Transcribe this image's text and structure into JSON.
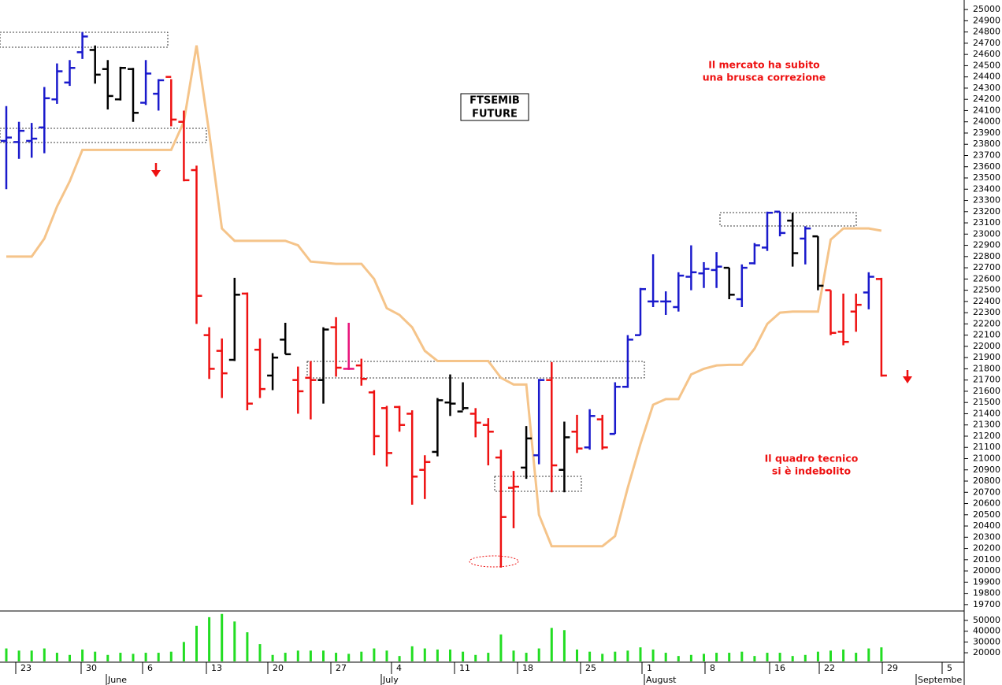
{
  "chart_data": {
    "type": "ohlc",
    "title_lines": [
      "FTSEMIB",
      "FUTURE"
    ],
    "annotations": [
      {
        "lines": [
          "Il mercato ha subito",
          "una brusca correzione"
        ],
        "color": "#ee1111"
      },
      {
        "lines": [
          "Il quadro tecnico",
          "si è indebolito"
        ],
        "color": "#ee1111"
      }
    ],
    "x_labels": [
      "23",
      "30",
      "6",
      "13",
      "20",
      "27",
      "4",
      "11",
      "18",
      "25",
      "1",
      "8",
      "16",
      "22",
      "29",
      "5"
    ],
    "month_labels": [
      "June",
      "July",
      "August",
      "Septembe"
    ],
    "ylim": [
      19650,
      25085
    ],
    "yticks": [
      19700,
      19800,
      19900,
      20000,
      20100,
      20200,
      20300,
      20400,
      20500,
      20600,
      20700,
      20800,
      20900,
      21000,
      21100,
      21200,
      21300,
      21400,
      21500,
      21600,
      21700,
      21800,
      21900,
      22000,
      22100,
      22200,
      22300,
      22400,
      22500,
      22600,
      22700,
      22800,
      22900,
      23000,
      23100,
      23200,
      23300,
      23400,
      23500,
      23600,
      23700,
      23800,
      23900,
      24000,
      24100,
      24200,
      24300,
      24400,
      24500,
      24600,
      24700,
      24800,
      24900,
      25000
    ],
    "high": [
      24140,
      24000,
      23990,
      24310,
      24520,
      24550,
      24800,
      24680,
      24550,
      24490,
      24480,
      24550,
      24380,
      24380,
      24100,
      23610,
      22170,
      22070,
      22610,
      22480,
      22070,
      21940,
      22210,
      21820,
      21870,
      22170,
      22260,
      22210,
      21890,
      21610,
      21470,
      21470,
      21430,
      21030,
      21540,
      21750,
      21680,
      21450,
      21360,
      21080,
      20890,
      21290,
      21710,
      21860,
      21330,
      21390,
      21440,
      21390,
      21680,
      22100,
      22520,
      22820,
      22490,
      22660,
      22900,
      22750,
      22840,
      22700,
      22730,
      22920,
      23200,
      23200,
      23190,
      23070,
      22980,
      22500,
      22470,
      22470,
      22660,
      22610
    ],
    "low": [
      23400,
      23670,
      23680,
      23720,
      24160,
      24320,
      24560,
      24340,
      24110,
      24190,
      24000,
      24150,
      24100,
      23960,
      23470,
      22200,
      21710,
      21540,
      21870,
      21430,
      21540,
      21610,
      21930,
      21400,
      21350,
      21490,
      21730,
      21790,
      21650,
      21030,
      20930,
      21240,
      20590,
      20640,
      21020,
      21380,
      21430,
      21190,
      20940,
      20030,
      20380,
      20820,
      20950,
      20700,
      20700,
      21050,
      21080,
      21080,
      21220,
      21630,
      22100,
      22350,
      22280,
      22310,
      22500,
      22520,
      22520,
      22420,
      22350,
      22730,
      22850,
      22980,
      22710,
      22730,
      22500,
      22100,
      22010,
      22130,
      22330,
      21730
    ],
    "open": [
      23830,
      23820,
      23830,
      23950,
      24200,
      24350,
      24620,
      24640,
      24470,
      24200,
      24470,
      24170,
      24250,
      24400,
      24000,
      23570,
      22100,
      21960,
      21880,
      22470,
      21970,
      21740,
      22060,
      21700,
      21720,
      21700,
      22170,
      21800,
      21830,
      21590,
      21450,
      21460,
      21400,
      20900,
      21060,
      21500,
      21420,
      21400,
      21300,
      21010,
      20740,
      20920,
      21030,
      21700,
      20900,
      21240,
      21100,
      21350,
      21220,
      21640,
      22100,
      22400,
      22400,
      22350,
      22620,
      22650,
      22680,
      22700,
      22420,
      22740,
      22880,
      23200,
      23120,
      22960,
      22980,
      22500,
      22130,
      22310,
      22480,
      22600
    ],
    "close": [
      23860,
      23920,
      23850,
      24210,
      24450,
      24480,
      24760,
      24420,
      24230,
      24480,
      24080,
      24430,
      24370,
      24020,
      23480,
      22450,
      21800,
      21760,
      22460,
      21490,
      21620,
      21900,
      21930,
      21600,
      21700,
      22150,
      21810,
      21800,
      21710,
      21200,
      21050,
      21300,
      20840,
      20970,
      21520,
      21490,
      21450,
      21320,
      21240,
      20480,
      20750,
      21180,
      21700,
      20940,
      21190,
      21090,
      21380,
      21100,
      21640,
      22060,
      22510,
      22400,
      22400,
      22630,
      22660,
      22690,
      22710,
      22460,
      22700,
      22900,
      23190,
      23010,
      22830,
      23050,
      22540,
      22120,
      22040,
      22370,
      22620,
      21740
    ],
    "colors": [
      "#1a1acc",
      "#1a1acc",
      "#1a1acc",
      "#1a1acc",
      "#1a1acc",
      "#1a1acc",
      "#1a1acc",
      "#000000",
      "#000000",
      "#000000",
      "#000000",
      "#1a1acc",
      "#1a1acc",
      "#ee1111",
      "#ee1111",
      "#ee1111",
      "#ee1111",
      "#ee1111",
      "#000000",
      "#ee1111",
      "#ee1111",
      "#000000",
      "#000000",
      "#ee1111",
      "#ee1111",
      "#000000",
      "#ee1111",
      "#e8117a",
      "#ee1111",
      "#ee1111",
      "#ee1111",
      "#ee1111",
      "#ee1111",
      "#ee1111",
      "#000000",
      "#000000",
      "#000000",
      "#ee1111",
      "#ee1111",
      "#ee1111",
      "#ee1111",
      "#000000",
      "#1a1acc",
      "#ee1111",
      "#000000",
      "#ee1111",
      "#1a1acc",
      "#ee1111",
      "#1a1acc",
      "#1a1acc",
      "#1a1acc",
      "#1a1acc",
      "#1a1acc",
      "#1a1acc",
      "#1a1acc",
      "#1a1acc",
      "#1a1acc",
      "#000000",
      "#1a1acc",
      "#1a1acc",
      "#1a1acc",
      "#1a1acc",
      "#000000",
      "#1a1acc",
      "#000000",
      "#ee1111",
      "#ee1111",
      "#ee1111",
      "#1a1acc",
      "#ee1111"
    ],
    "stop_line": {
      "color": "#f5c48a",
      "values": [
        22800,
        22800,
        22800,
        22960,
        23245,
        23470,
        23750,
        23750,
        23750,
        23750,
        23750,
        23750,
        23750,
        23750,
        24000,
        24680,
        23900,
        23050,
        22940,
        22940,
        22940,
        22940,
        22940,
        22900,
        22755,
        22745,
        22735,
        22735,
        22735,
        22600,
        22340,
        22280,
        22170,
        21960,
        21870,
        21870,
        21870,
        21870,
        21870,
        21720,
        21660,
        21660,
        20500,
        20220,
        20220,
        20220,
        20220,
        20220,
        20310,
        20740,
        21130,
        21480,
        21530,
        21530,
        21750,
        21800,
        21830,
        21835,
        21835,
        21980,
        22200,
        22300,
        22310,
        22310,
        22310,
        22950,
        23050,
        23050,
        23050,
        23030
      ]
    },
    "volume": {
      "color": "#22dd22",
      "ylim": [
        12000,
        58000
      ],
      "yticks": [
        20000,
        30000,
        40000,
        50000
      ],
      "values": [
        24000,
        22000,
        22000,
        24000,
        20000,
        18000,
        23000,
        21000,
        18000,
        20000,
        19000,
        20000,
        20000,
        21000,
        30000,
        45000,
        53000,
        56000,
        49000,
        39000,
        28000,
        18000,
        20000,
        22000,
        22000,
        22000,
        20000,
        19000,
        21000,
        24000,
        22000,
        17000,
        26000,
        24000,
        23000,
        23000,
        21000,
        18000,
        20000,
        37000,
        22000,
        20000,
        24000,
        43000,
        41000,
        23000,
        21000,
        19000,
        21000,
        22000,
        25000,
        23000,
        20000,
        17000,
        18000,
        19000,
        20000,
        20000,
        21000,
        17000,
        20000,
        20000,
        17000,
        18000,
        21000,
        22000,
        23000,
        20000,
        24000,
        25000
      ]
    }
  }
}
